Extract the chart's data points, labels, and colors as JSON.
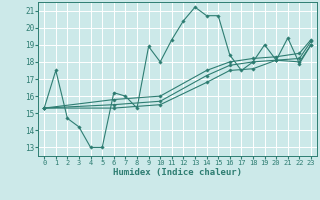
{
  "title": "",
  "xlabel": "Humidex (Indice chaleur)",
  "xlim": [
    -0.5,
    23.5
  ],
  "ylim": [
    12.5,
    21.5
  ],
  "yticks": [
    13,
    14,
    15,
    16,
    17,
    18,
    19,
    20,
    21
  ],
  "xticks": [
    0,
    1,
    2,
    3,
    4,
    5,
    6,
    7,
    8,
    9,
    10,
    11,
    12,
    13,
    14,
    15,
    16,
    17,
    18,
    19,
    20,
    21,
    22,
    23
  ],
  "bg_color": "#cce9e9",
  "line_color": "#2e7d72",
  "grid_color": "#ffffff",
  "lines": [
    {
      "x": [
        0,
        1,
        2,
        3,
        4,
        5,
        6,
        7,
        8,
        9,
        10,
        11,
        12,
        13,
        14,
        15,
        16,
        17,
        18,
        19,
        20,
        21,
        22,
        23
      ],
      "y": [
        15.3,
        17.5,
        14.7,
        14.2,
        13.0,
        13.0,
        16.2,
        16.0,
        15.3,
        18.9,
        18.0,
        19.3,
        20.4,
        21.2,
        20.7,
        20.7,
        18.4,
        17.5,
        18.0,
        19.0,
        18.1,
        19.4,
        17.9,
        19.0
      ]
    },
    {
      "x": [
        0,
        6,
        10,
        14,
        16,
        18,
        20,
        22,
        23
      ],
      "y": [
        15.3,
        15.3,
        15.5,
        16.8,
        17.5,
        17.6,
        18.1,
        18.0,
        19.0
      ]
    },
    {
      "x": [
        0,
        6,
        10,
        14,
        16,
        18,
        20,
        22,
        23
      ],
      "y": [
        15.3,
        15.5,
        15.7,
        17.2,
        17.8,
        18.0,
        18.1,
        18.2,
        19.2
      ]
    },
    {
      "x": [
        0,
        6,
        10,
        14,
        16,
        18,
        20,
        22,
        23
      ],
      "y": [
        15.3,
        15.8,
        16.0,
        17.5,
        18.0,
        18.2,
        18.3,
        18.5,
        19.3
      ]
    }
  ]
}
